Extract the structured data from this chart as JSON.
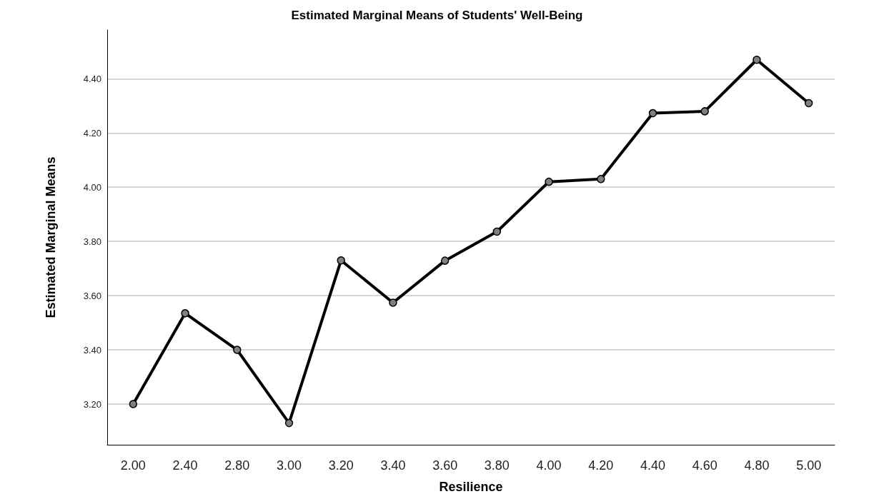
{
  "chart_data": {
    "type": "line",
    "title": "Estimated Marginal Means of Students' Well-Being",
    "xlabel": "Resilience",
    "ylabel": "Estimated Marginal Means",
    "categories": [
      "2.00",
      "2.40",
      "2.80",
      "3.00",
      "3.20",
      "3.40",
      "3.60",
      "3.80",
      "4.00",
      "4.20",
      "4.40",
      "4.60",
      "4.80",
      "5.00"
    ],
    "series": [
      {
        "color": "#000000",
        "values": [
          3.2,
          3.535,
          3.4,
          3.13,
          3.73,
          3.574,
          3.729,
          3.836,
          4.02,
          4.03,
          4.273,
          4.28,
          4.47,
          4.31
        ]
      }
    ],
    "ylim": [
      3.05,
      4.58
    ],
    "yticks": [
      {
        "value": 3.2,
        "label": "3.20"
      },
      {
        "value": 3.4,
        "label": "3.40"
      },
      {
        "value": 3.6,
        "label": "3.60"
      },
      {
        "value": 3.8,
        "label": "3.80"
      },
      {
        "value": 4.0,
        "label": "4.00"
      },
      {
        "value": 4.2,
        "label": "4.20"
      },
      {
        "value": 4.4,
        "label": "4.40"
      }
    ],
    "grid": "y",
    "marker": "circle",
    "line_style": "solid"
  }
}
